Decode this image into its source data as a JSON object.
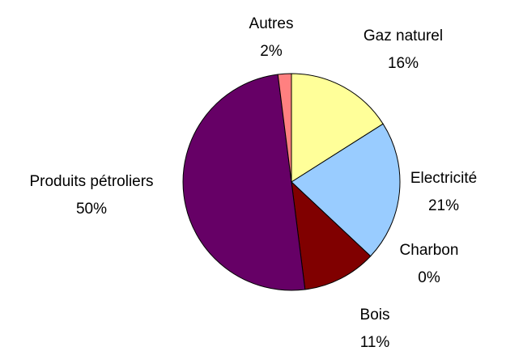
{
  "chart_data": {
    "type": "pie",
    "categories": [
      "Gaz naturel",
      "Electricité",
      "Charbon",
      "Bois",
      "Produits pétroliers",
      "Autres"
    ],
    "values": [
      16,
      21,
      0,
      11,
      50,
      2
    ],
    "value_labels": [
      "16%",
      "21%",
      "0%",
      "11%",
      "50%",
      "2%"
    ],
    "colors": [
      "#ffff99",
      "#99ccff",
      "#008080",
      "#800000",
      "#660066",
      "#ff8080"
    ]
  }
}
